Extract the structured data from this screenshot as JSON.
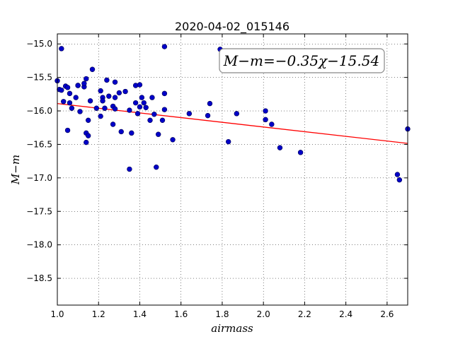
{
  "chart_data": {
    "type": "scatter",
    "title": "2020-04-02_015146",
    "xlabel": "airmass",
    "ylabel": "M−m",
    "xlim": [
      1.0,
      2.7
    ],
    "ylim": [
      -18.9,
      -14.85
    ],
    "y_inverted": true,
    "grid": true,
    "x_ticks": [
      1.0,
      1.2,
      1.4,
      1.6,
      1.8,
      2.0,
      2.2,
      2.4,
      2.6
    ],
    "x_tick_labels": [
      "1.0",
      "1.2",
      "1.4",
      "1.6",
      "1.8",
      "2.0",
      "2.2",
      "2.4",
      "2.6"
    ],
    "y_ticks": [
      -15.0,
      -15.5,
      -16.0,
      -16.5,
      -17.0,
      -17.5,
      -18.0,
      -18.5
    ],
    "y_tick_labels": [
      "−15.0",
      "−15.5",
      "−16.0",
      "−16.5",
      "−17.0",
      "−17.5",
      "−18.0",
      "−18.5"
    ],
    "annotation": "M−m=−0.35χ−15.54",
    "fit_line": {
      "slope": -0.35,
      "intercept": -15.54,
      "color": "#ff0000"
    },
    "marker_color": "#0000c8",
    "series": [
      {
        "x": [
          1.0,
          1.01,
          1.02,
          1.02,
          1.03,
          1.04,
          1.05,
          1.05,
          1.06,
          1.06,
          1.07,
          1.09,
          1.1,
          1.1,
          1.11,
          1.13,
          1.13,
          1.14,
          1.14,
          1.14,
          1.15,
          1.15,
          1.16,
          1.17,
          1.19,
          1.21,
          1.21,
          1.22,
          1.22,
          1.23,
          1.24,
          1.25,
          1.27,
          1.27,
          1.28,
          1.28,
          1.28,
          1.3,
          1.31,
          1.33,
          1.35,
          1.35,
          1.36,
          1.38,
          1.38,
          1.39,
          1.4,
          1.4,
          1.41,
          1.42,
          1.43,
          1.45,
          1.46,
          1.47,
          1.48,
          1.49,
          1.51,
          1.52,
          1.52,
          1.52,
          1.56,
          1.64,
          1.73,
          1.74,
          1.79,
          1.83,
          1.87,
          2.01,
          2.01,
          2.04,
          2.08,
          2.18,
          2.65,
          2.66,
          2.7
        ],
        "y": [
          -15.55,
          -15.68,
          -15.07,
          -15.69,
          -15.86,
          -15.63,
          -15.65,
          -16.29,
          -15.88,
          -15.74,
          -15.96,
          -15.8,
          -15.62,
          -15.62,
          -16.01,
          -15.64,
          -15.59,
          -16.47,
          -15.52,
          -16.33,
          -16.37,
          -16.14,
          -15.85,
          -15.38,
          -15.96,
          -16.08,
          -15.7,
          -15.8,
          -15.85,
          -15.96,
          -15.54,
          -15.78,
          -15.93,
          -16.2,
          -15.97,
          -15.8,
          -15.57,
          -15.73,
          -16.31,
          -15.71,
          -15.99,
          -16.87,
          -16.33,
          -15.62,
          -15.88,
          -16.04,
          -15.61,
          -15.94,
          -15.8,
          -15.88,
          -15.95,
          -16.14,
          -15.8,
          -16.05,
          -16.84,
          -16.35,
          -16.14,
          -15.04,
          -15.74,
          -15.98,
          -16.43,
          -16.04,
          -16.07,
          -15.89,
          -15.08,
          -16.46,
          -16.04,
          -16.0,
          -16.13,
          -16.2,
          -16.55,
          -16.62,
          -16.95,
          -17.03,
          -16.27
        ]
      }
    ]
  }
}
